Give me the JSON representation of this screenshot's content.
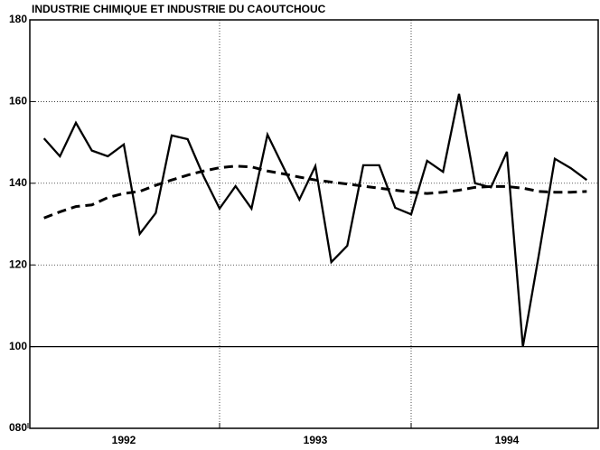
{
  "chart_data": {
    "type": "line",
    "title": "INDUSTRIE CHIMIQUE ET INDUSTRIE DU CAOUTCHOUC",
    "categories": [
      null,
      null,
      null,
      null,
      null,
      null,
      null,
      null,
      null,
      null,
      null,
      null,
      null,
      null,
      null,
      null,
      null,
      null,
      null,
      null,
      null,
      null,
      null,
      null,
      null,
      null,
      null,
      null,
      null,
      null,
      null,
      null,
      null,
      null,
      null
    ],
    "year_labels": [
      "1992",
      "1993",
      "1994"
    ],
    "series": [
      {
        "color": "#000000",
        "dash": false,
        "values": [
          151,
          146.6,
          154.8,
          148,
          146.6,
          149.5,
          127.6,
          132.7,
          151.7,
          150.8,
          141.7,
          133.8,
          139.3,
          133.8,
          151.9,
          143.9,
          136,
          144.2,
          120.7,
          124.7,
          144.4,
          144.4,
          134,
          132.4,
          145.5,
          142.8,
          161.9,
          140,
          139,
          147.7,
          100,
          122.5,
          146,
          143.7,
          140.8
        ]
      },
      {
        "color": "#000000",
        "dash": true,
        "values": [
          131.5,
          133,
          134.3,
          134.7,
          136.5,
          137.5,
          138,
          139.5,
          140.8,
          142,
          143,
          143.8,
          144.2,
          144,
          143,
          142.3,
          141.5,
          140.8,
          140.3,
          139.8,
          139.3,
          138.8,
          138.3,
          137.8,
          137.5,
          137.8,
          138.3,
          139,
          139.2,
          139.2,
          138.8,
          138,
          137.8,
          137.8,
          138
        ]
      }
    ],
    "ylim": [
      80,
      180
    ],
    "yticks": [
      {
        "value": 80,
        "label": "080"
      },
      100,
      120,
      140,
      160,
      180
    ],
    "grid": true,
    "baseline": 100
  }
}
